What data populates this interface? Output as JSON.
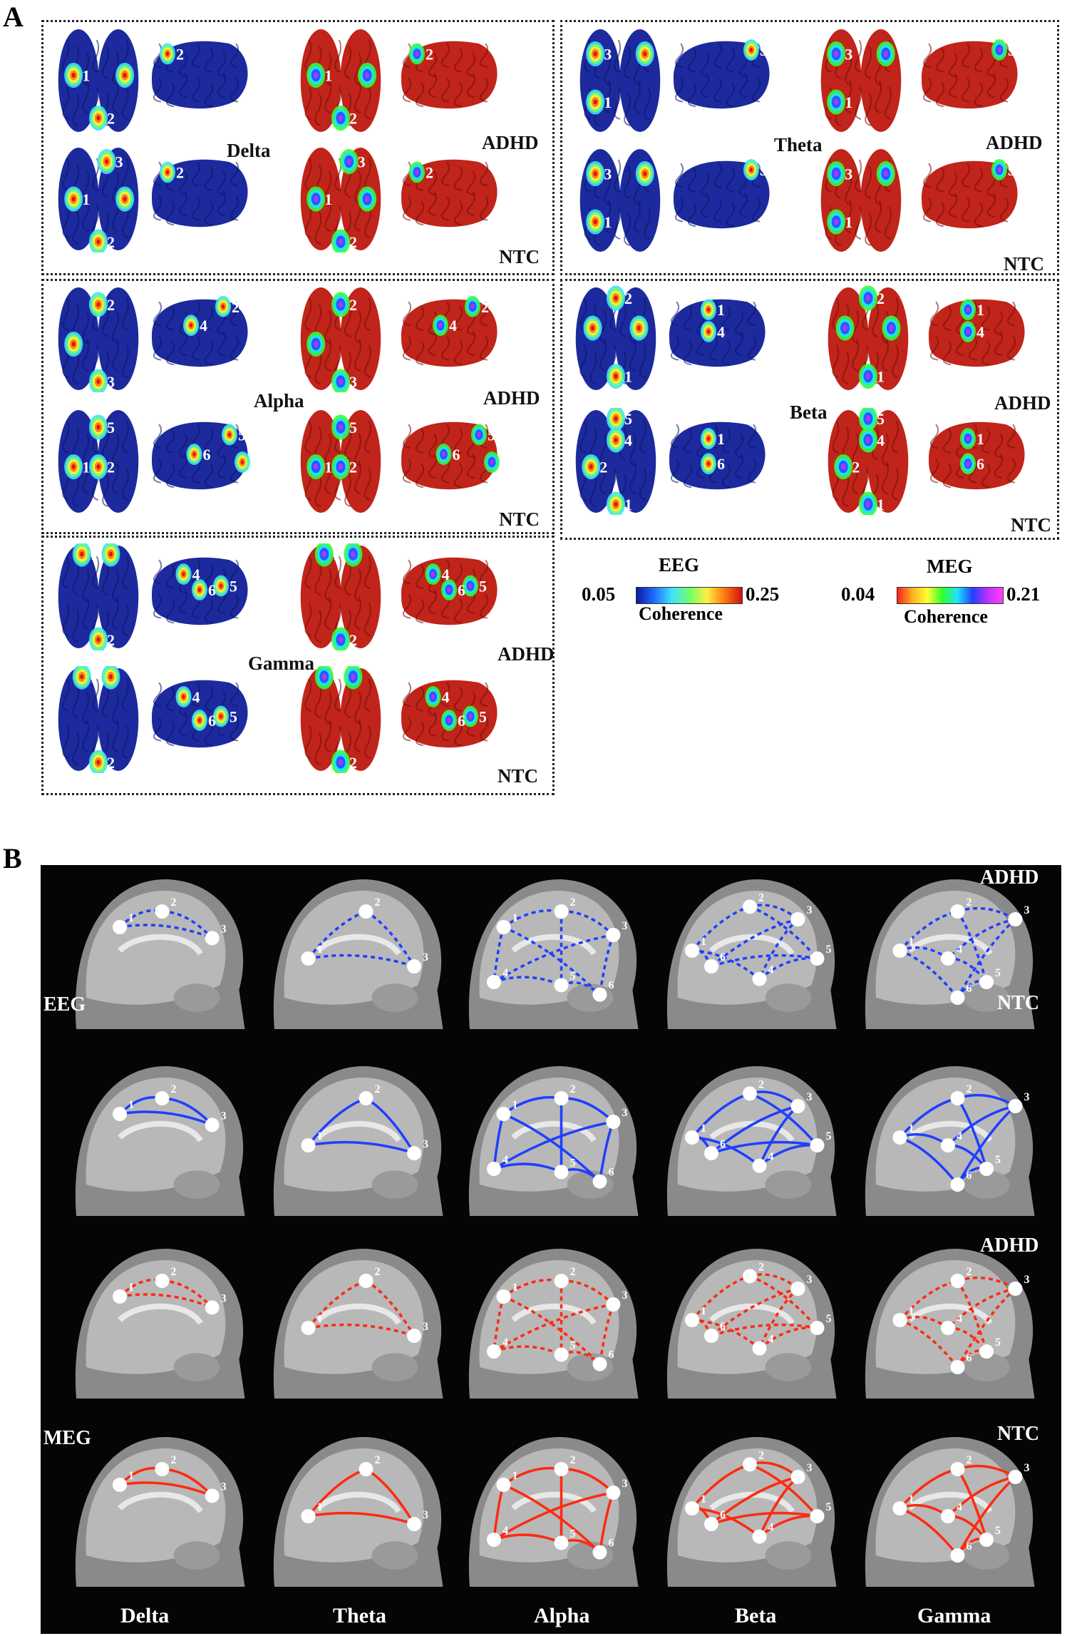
{
  "panel_a": {
    "letter": "A",
    "colors": {
      "cortex_eeg": "#1c2a9e",
      "cortex_meg": "#c0241a"
    },
    "groups": [
      {
        "band": "Delta",
        "cohorts": [
          "ADHD",
          "NTC"
        ]
      },
      {
        "band": "Theta",
        "cohorts": [
          "ADHD",
          "NTC"
        ]
      },
      {
        "band": "Alpha",
        "cohorts": [
          "ADHD",
          "NTC"
        ]
      },
      {
        "band": "Beta",
        "cohorts": [
          "ADHD",
          "NTC"
        ]
      },
      {
        "band": "Gamma",
        "cohorts": [
          "ADHD",
          "NTC"
        ]
      }
    ],
    "colorbars": {
      "eeg": {
        "title": "EEG",
        "min": "0.05",
        "max": "0.25",
        "caption": "Coherence"
      },
      "meg": {
        "title": "MEG",
        "min": "0.04",
        "max": "0.21",
        "caption": "Coherence"
      }
    }
  },
  "panel_b": {
    "letter": "B",
    "row_labels": {
      "eeg": "EEG",
      "meg": "MEG",
      "adhd": "ADHD",
      "ntc": "NTC"
    },
    "bands": [
      "Delta",
      "Theta",
      "Alpha",
      "Beta",
      "Gamma"
    ],
    "colors": {
      "eeg": "#1f3fff",
      "meg": "#ff2a10"
    }
  }
}
